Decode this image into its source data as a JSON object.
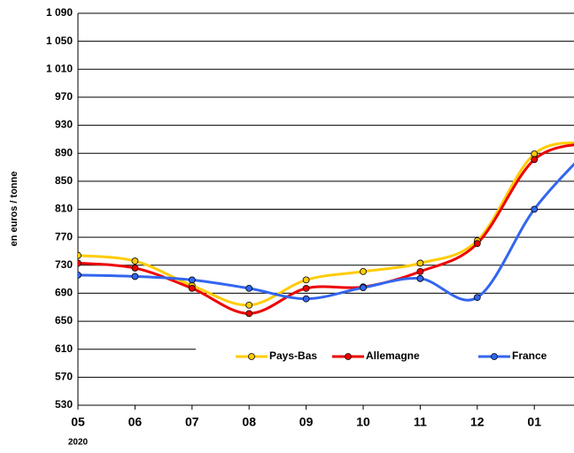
{
  "chart_data": {
    "type": "line",
    "y_label": "en euros / tonne",
    "x_annotation": "2020",
    "categories": [
      "05",
      "06",
      "07",
      "08",
      "09",
      "10",
      "11",
      "12",
      "01",
      null
    ],
    "series": [
      {
        "name": "Pays-Bas",
        "color": "#ffcc00",
        "values": [
          744,
          736,
          701,
          673,
          709,
          721,
          733,
          765,
          889,
          905
        ]
      },
      {
        "name": "Allemagne",
        "color": "#ee0000",
        "values": [
          733,
          726,
          697,
          661,
          697,
          699,
          721,
          761,
          881,
          905
        ]
      },
      {
        "name": "France",
        "color": "#3366ee",
        "values": [
          716,
          714,
          709,
          697,
          682,
          698,
          711,
          684,
          810,
          900
        ]
      }
    ],
    "ylim": [
      530,
      1090
    ],
    "yticks": [
      530,
      570,
      610,
      650,
      690,
      730,
      770,
      810,
      850,
      890,
      930,
      970,
      {
        "value": 1010,
        "label": "1 010"
      },
      {
        "value": 1050,
        "label": "1 050"
      },
      {
        "value": 1090,
        "label": "1 090"
      }
    ],
    "grid": true
  }
}
